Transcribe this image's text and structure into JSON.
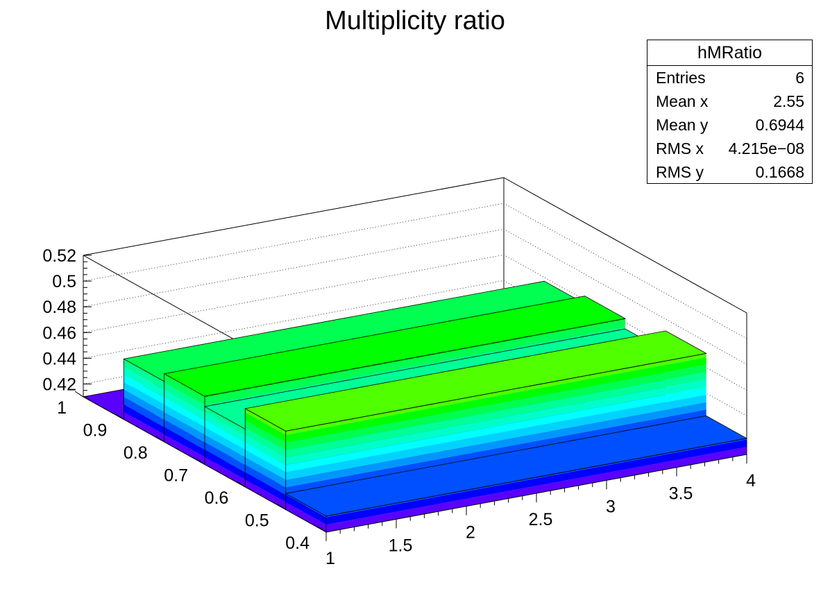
{
  "chart_data": {
    "type": "lego-3d-histogram",
    "title": "Multiplicity ratio",
    "xlabel": "",
    "ylabel": "",
    "zlabel": "",
    "xlim": [
      1,
      4
    ],
    "ylim": [
      0.4,
      1
    ],
    "zlim": [
      0.41,
      0.52
    ],
    "x_ticks": [
      "1",
      "1.5",
      "2",
      "2.5",
      "3",
      "3.5",
      "4"
    ],
    "y_ticks": [
      "0.4",
      "0.5",
      "0.6",
      "0.7",
      "0.8",
      "0.9",
      "1"
    ],
    "z_ticks": [
      "0.42",
      "0.44",
      "0.46",
      "0.48",
      "0.5",
      "0.52"
    ],
    "bins": [
      {
        "x_low": 1.0,
        "x_high": 4.0,
        "y_low": 0.9,
        "y_high": 1.0,
        "z": 0.41
      },
      {
        "x_low": 1.0,
        "x_high": 4.0,
        "y_low": 0.8,
        "y_high": 0.9,
        "z": 0.457
      },
      {
        "x_low": 1.0,
        "x_high": 4.0,
        "y_low": 0.7,
        "y_high": 0.8,
        "z": 0.463
      },
      {
        "x_low": 1.0,
        "x_high": 4.0,
        "y_low": 0.6,
        "y_high": 0.7,
        "z": 0.455
      },
      {
        "x_low": 1.0,
        "x_high": 4.0,
        "y_low": 0.5,
        "y_high": 0.6,
        "z": 0.471
      },
      {
        "x_low": 1.0,
        "x_high": 4.0,
        "y_low": 0.4,
        "y_high": 0.5,
        "z": 0.4225
      }
    ],
    "colors": [
      "#5a00ff",
      "#0000ff",
      "#0050ff",
      "#0096ff",
      "#00d2ff",
      "#00ffff",
      "#00ffc8",
      "#00ff96",
      "#00ff50",
      "#00ff00",
      "#50ff00",
      "#96ff00",
      "#c8ff00",
      "#ffff00",
      "#ffd200",
      "#ffa000",
      "#ff6e00",
      "#ff3c00",
      "#ff0000"
    ],
    "grid": true,
    "legend": "none",
    "stats_box": {
      "name": "hMRatio",
      "rows": [
        {
          "label": "Entries",
          "value": "6"
        },
        {
          "label": "Mean x",
          "value": "2.55"
        },
        {
          "label": "Mean y",
          "value": "0.6944"
        },
        {
          "label": "RMS x",
          "value": "4.215e−08"
        },
        {
          "label": "RMS y",
          "value": "0.1668"
        }
      ]
    },
    "placement": {
      "stats_box": "top-right"
    }
  }
}
